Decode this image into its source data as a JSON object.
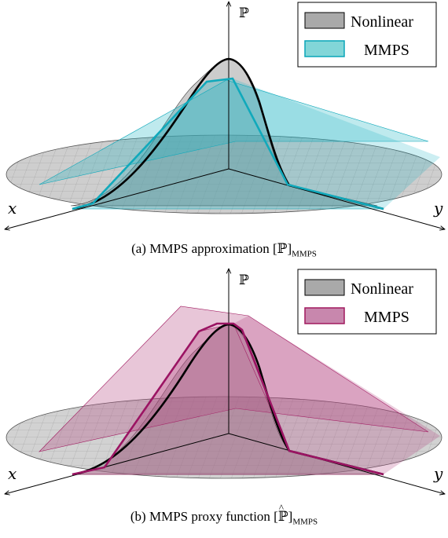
{
  "panels": [
    {
      "caption": "(a) MMPS approximation [ℙ]MMPS",
      "legend": [
        {
          "label": "Nonlinear",
          "fill": "#a9a9a9",
          "stroke": "#000000"
        },
        {
          "label": "MMPS",
          "fill": "#82d6d8",
          "stroke": "#0aa6b8"
        }
      ],
      "axes": {
        "x": "x",
        "y": "y",
        "z": "ℙ"
      },
      "colors": {
        "mmps_line": "#11a9bb",
        "mmps_fill": "#19b3c3"
      }
    },
    {
      "caption": "(b) MMPS proxy function [ℙ̂]MMPS",
      "legend": [
        {
          "label": "Nonlinear",
          "fill": "#a9a9a9",
          "stroke": "#000000"
        },
        {
          "label": "MMPS",
          "fill": "#c887ad",
          "stroke": "#a0195f"
        }
      ],
      "axes": {
        "x": "x",
        "y": "y",
        "z": "ℙ"
      },
      "colors": {
        "mmps_line": "#9b1463",
        "mmps_fill": "#b3437f"
      }
    }
  ]
}
